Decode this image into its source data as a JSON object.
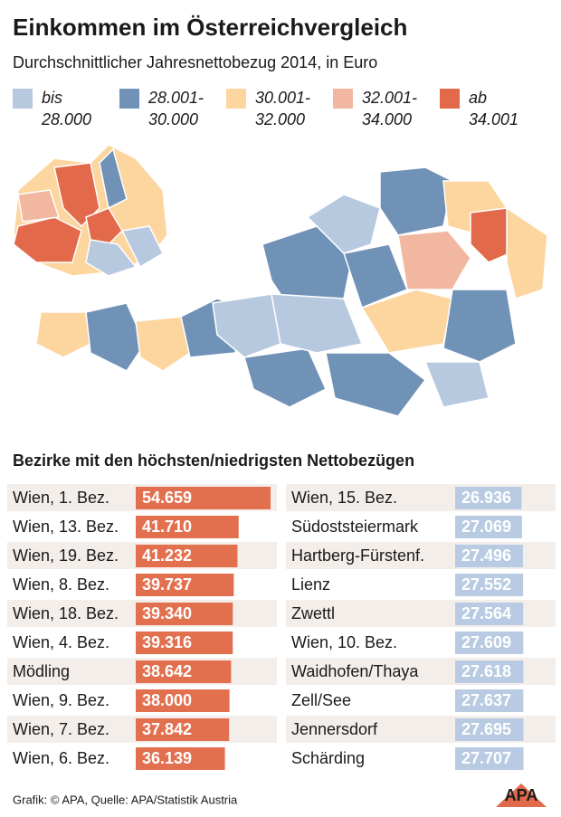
{
  "title": "Einkommen im Österreichvergleich",
  "subtitle": "Durchschnittlicher Jahresnettobezug 2014, in Euro",
  "legend": [
    {
      "lines": [
        "bis",
        "28.000"
      ],
      "color": "#b7c9df"
    },
    {
      "lines": [
        "28.001-",
        "30.000"
      ],
      "color": "#7192b7"
    },
    {
      "lines": [
        "30.001-",
        "32.000"
      ],
      "color": "#fdd59f"
    },
    {
      "lines": [
        "32.001-",
        "34.000"
      ],
      "color": "#f1b7a0"
    },
    {
      "lines": [
        "ab",
        "34.001"
      ],
      "color": "#e2694a"
    }
  ],
  "heading": "Bezirke mit den höchsten/niedrigsten Nettobezügen",
  "chart_data": [
    {
      "type": "bar",
      "orientation": "horizontal",
      "color": "#e2704f",
      "xlim": [
        0,
        55000
      ],
      "categories": [
        "Wien, 1. Bez.",
        "Wien, 13. Bez.",
        "Wien, 19. Bez.",
        "Wien, 8. Bez.",
        "Wien, 18. Bez.",
        "Wien, 4. Bez.",
        "Mödling",
        "Wien, 9. Bez.",
        "Wien, 7. Bez.",
        "Wien, 6. Bez."
      ],
      "values": [
        54659,
        41710,
        41232,
        39737,
        39340,
        39316,
        38642,
        38000,
        37842,
        36139
      ],
      "value_labels": [
        "54.659",
        "41.710",
        "41.232",
        "39.737",
        "39.340",
        "39.316",
        "38.642",
        "38.000",
        "37.842",
        "36.139"
      ]
    },
    {
      "type": "bar",
      "orientation": "horizontal",
      "color": "#b8cbe2",
      "xlim": [
        0,
        55000
      ],
      "categories": [
        "Wien, 15. Bez.",
        "Südoststeiermark",
        "Hartberg-Fürstenf.",
        "Lienz",
        "Zwettl",
        "Wien, 10. Bez.",
        "Waidhofen/Thaya",
        "Zell/See",
        "Jennersdorf",
        "Schärding"
      ],
      "values": [
        26936,
        27069,
        27496,
        27552,
        27564,
        27609,
        27618,
        27637,
        27695,
        27707
      ],
      "value_labels": [
        "26.936",
        "27.069",
        "27.496",
        "27.552",
        "27.564",
        "27.609",
        "27.618",
        "27.637",
        "27.695",
        "27.707"
      ]
    }
  ],
  "source": "Grafik: © APA, Quelle: APA/Statistik Austria",
  "logo": "APA"
}
